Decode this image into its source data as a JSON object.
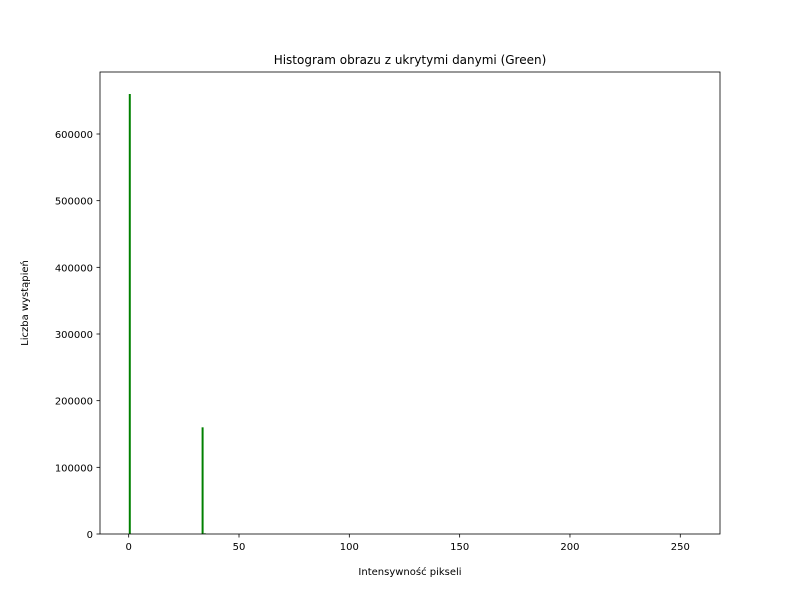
{
  "chart_data": {
    "type": "bar",
    "title": "Histogram obrazu z ukrytymi danymi (Green)",
    "xlabel": "Intensywność pikseli",
    "ylabel": "Liczba wystąpień",
    "xlim": [
      -13,
      268
    ],
    "ylim": [
      0,
      693000
    ],
    "x_ticks": [
      0,
      50,
      100,
      150,
      200,
      250
    ],
    "x_tick_labels": [
      "0",
      "50",
      "100",
      "150",
      "200",
      "250"
    ],
    "y_ticks": [
      0,
      100000,
      200000,
      300000,
      400000,
      500000,
      600000
    ],
    "y_tick_labels": [
      "0",
      "100000",
      "200000",
      "300000",
      "400000",
      "500000",
      "600000"
    ],
    "bars": [
      {
        "x": 0,
        "value": 660000
      },
      {
        "x": 33,
        "value": 160000
      },
      {
        "x": 34,
        "value": 1000
      }
    ],
    "bar_color": "#008000",
    "grid": false,
    "legend": "none"
  }
}
